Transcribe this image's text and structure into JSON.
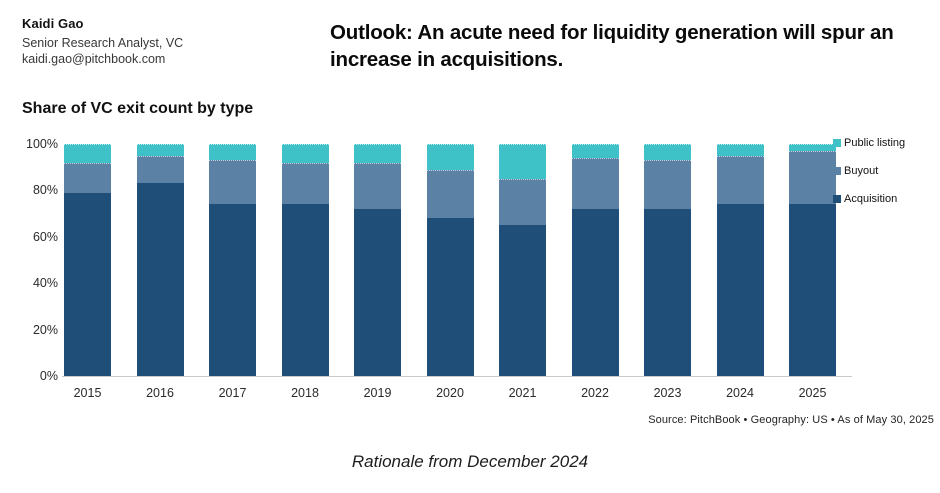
{
  "author": {
    "name": "Kaidi Gao",
    "title": "Senior Research Analyst, VC",
    "email": "kaidi.gao@pitchbook.com"
  },
  "headline": "Outlook: An acute need for liquidity generation will spur an increase in acquisitions.",
  "chart_data": {
    "type": "bar",
    "stacked": true,
    "title": "Share of VC exit count by type",
    "categories": [
      "2015",
      "2016",
      "2017",
      "2018",
      "2019",
      "2020",
      "2021",
      "2022",
      "2023",
      "2024",
      "2025"
    ],
    "series": [
      {
        "name": "Acquisition",
        "color": "#1f4e79",
        "values": [
          79,
          83,
          74,
          74,
          72,
          68,
          65,
          72,
          72,
          74,
          74
        ]
      },
      {
        "name": "Buyout",
        "color": "#5b81a5",
        "values": [
          13,
          12,
          19,
          18,
          20,
          21,
          20,
          22,
          21,
          21,
          23
        ]
      },
      {
        "name": "Public listing",
        "color": "#3fc1c8",
        "values": [
          8,
          5,
          7,
          8,
          8,
          11,
          15,
          6,
          7,
          5,
          3
        ]
      }
    ],
    "y_ticks": [
      "100%",
      "80%",
      "60%",
      "40%",
      "20%",
      "0%"
    ],
    "ylim": [
      0,
      100
    ],
    "unit": "%",
    "grid": false,
    "legend_position": "right",
    "legend_order": [
      "Public listing",
      "Buyout",
      "Acquisition"
    ]
  },
  "source_note": "Source: PitchBook • Geography: US • As of May 30, 2025",
  "footer_note": "Rationale from December 2024"
}
